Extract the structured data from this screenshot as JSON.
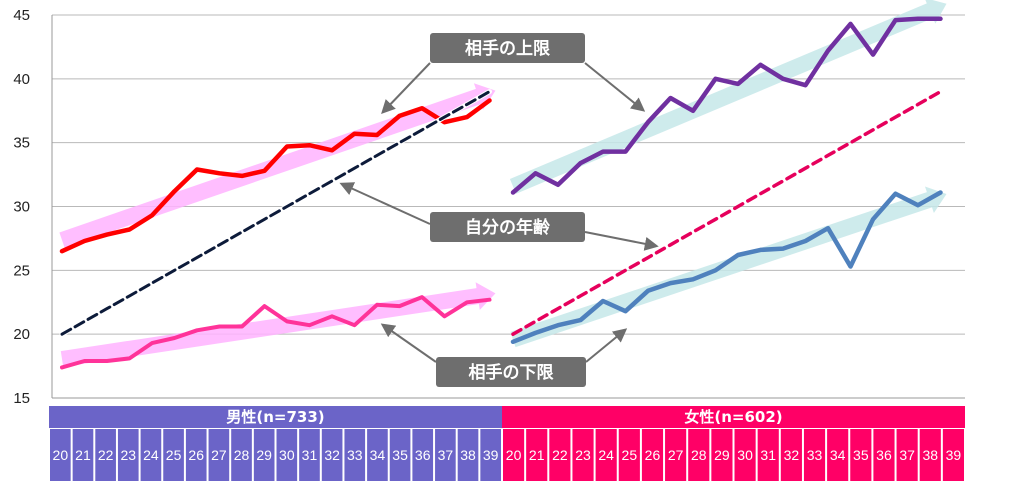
{
  "chart_data": {
    "type": "line",
    "y_ticks": [
      "15",
      "20",
      "25",
      "30",
      "35",
      "40",
      "45"
    ],
    "ylim": [
      15,
      45
    ],
    "grid": true,
    "groups": [
      {
        "label": "男性(n=733)",
        "ages": [
          "20",
          "21",
          "22",
          "23",
          "24",
          "25",
          "26",
          "27",
          "28",
          "29",
          "30",
          "31",
          "32",
          "33",
          "34",
          "35",
          "36",
          "37",
          "38",
          "39"
        ],
        "series": [
          {
            "role": "upper",
            "values": [
              26.5,
              27.3,
              27.8,
              28.2,
              29.3,
              31.2,
              32.9,
              32.6,
              32.4,
              32.8,
              34.7,
              34.8,
              34.4,
              35.7,
              35.6,
              37.1,
              37.7,
              36.6,
              37.0,
              38.3
            ]
          },
          {
            "role": "self",
            "values": [
              20,
              21,
              22,
              23,
              24,
              25,
              26,
              27,
              28,
              29,
              30,
              31,
              32,
              33,
              34,
              35,
              36,
              37,
              38,
              39
            ]
          },
          {
            "role": "lower",
            "values": [
              17.4,
              17.9,
              17.9,
              18.1,
              19.3,
              19.7,
              20.3,
              20.6,
              20.6,
              22.2,
              21.0,
              20.7,
              21.4,
              20.7,
              22.3,
              22.2,
              22.9,
              21.4,
              22.5,
              22.7
            ]
          }
        ]
      },
      {
        "label": "女性(n=602)",
        "ages": [
          "20",
          "21",
          "22",
          "23",
          "24",
          "25",
          "26",
          "27",
          "28",
          "29",
          "30",
          "31",
          "32",
          "33",
          "34",
          "35",
          "36",
          "37",
          "38",
          "39"
        ],
        "series": [
          {
            "role": "upper",
            "values": [
              31.1,
              32.6,
              31.7,
              33.4,
              34.3,
              34.3,
              36.6,
              38.5,
              37.5,
              40.0,
              39.6,
              41.1,
              40.0,
              39.5,
              42.2,
              44.3,
              41.9,
              44.6,
              44.7,
              44.7
            ]
          },
          {
            "role": "self",
            "values": [
              20,
              21,
              22,
              23,
              24,
              25,
              26,
              27,
              28,
              29,
              30,
              31,
              32,
              33,
              34,
              35,
              36,
              37,
              38,
              39
            ]
          },
          {
            "role": "lower",
            "values": [
              19.4,
              20.1,
              20.7,
              21.1,
              22.6,
              21.8,
              23.4,
              24.0,
              24.3,
              25.0,
              26.2,
              26.6,
              26.7,
              27.3,
              28.3,
              25.3,
              29.0,
              31.0,
              30.1,
              31.1
            ]
          }
        ]
      }
    ],
    "annotations": [
      {
        "id": "upper",
        "text": "相手の上限"
      },
      {
        "id": "self",
        "text": "自分の年齢"
      },
      {
        "id": "lower",
        "text": "相手の下限"
      }
    ]
  },
  "colors": {
    "male_upper": "#ff0000",
    "male_self": "#0d1b3a",
    "male_lower": "#ff3399",
    "female_upper": "#7030a0",
    "female_self": "#e6005c",
    "female_lower": "#4f81bd",
    "male_trend": "#ffb3ff",
    "female_trend": "#c5e7e9",
    "male_header": "#6b64c8",
    "female_header": "#ff0066",
    "callout_bg": "#6e6e6e",
    "grid": "#b9b9b9"
  }
}
